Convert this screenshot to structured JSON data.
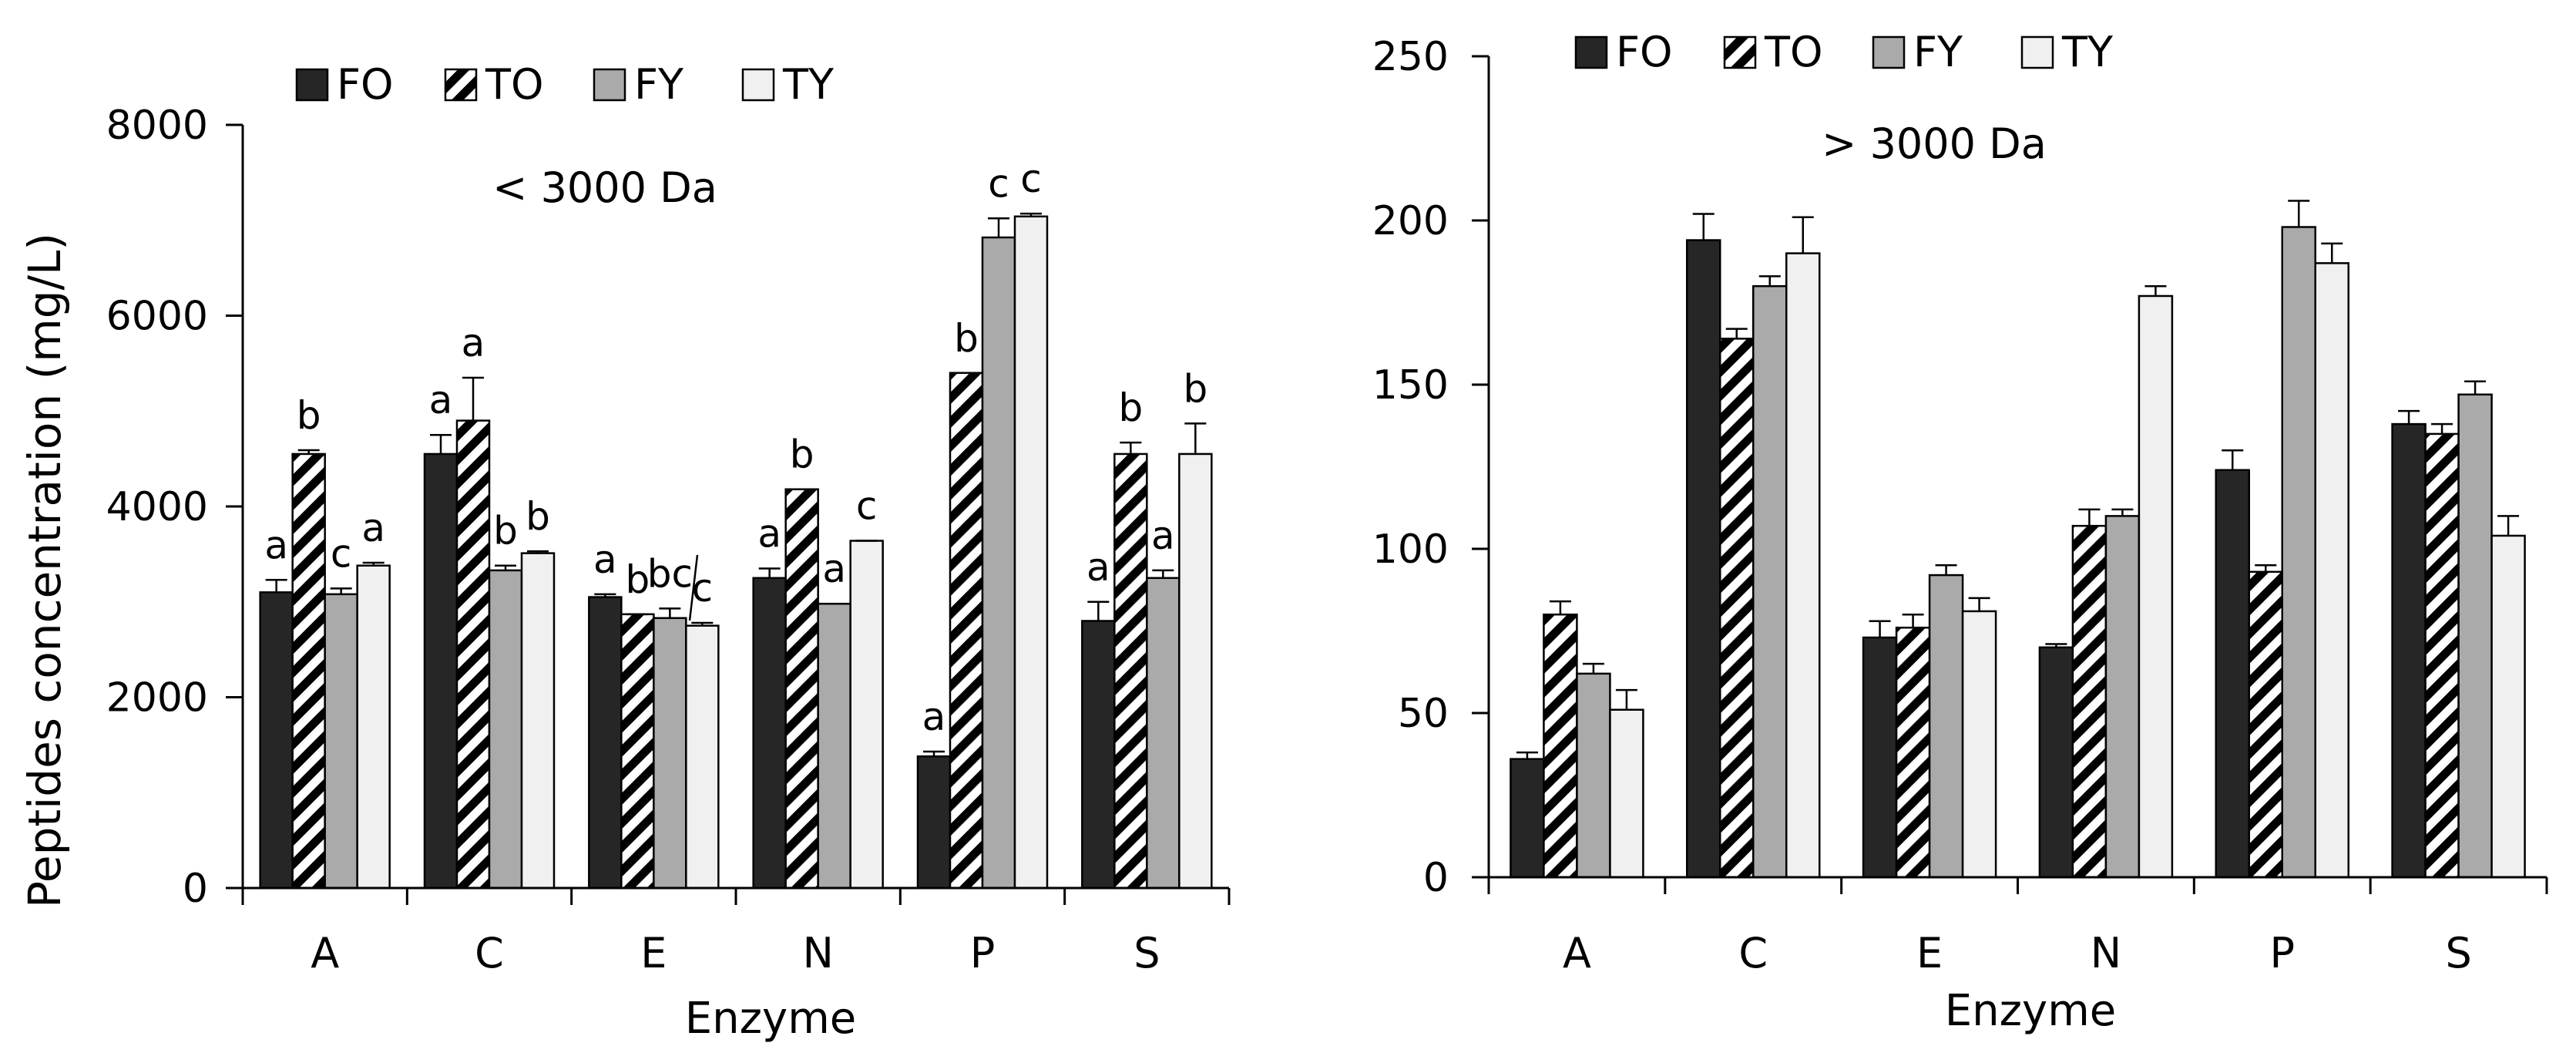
{
  "chart_data": [
    {
      "type": "bar",
      "panel_label": "< 3000 Da",
      "xlabel": "Enzyme",
      "ylabel": "Peptides concentration (mg/L)",
      "ylim": [
        0,
        8000
      ],
      "yticks": [
        0,
        2000,
        4000,
        6000,
        8000
      ],
      "grid": false,
      "legend_position": "top-left",
      "categories": [
        "A",
        "C",
        "E",
        "N",
        "P",
        "S"
      ],
      "series": [
        {
          "name": "FO",
          "values": [
            3100,
            4550,
            3050,
            3250,
            1380,
            2800
          ],
          "errors": [
            130,
            200,
            30,
            100,
            50,
            200
          ],
          "letters": [
            "a",
            "a",
            "a",
            "a",
            "a",
            "a"
          ]
        },
        {
          "name": "TO",
          "values": [
            4550,
            4900,
            2870,
            4180,
            5400,
            4550
          ],
          "errors": [
            40,
            450,
            0,
            0,
            0,
            120
          ],
          "letters": [
            "b",
            "a",
            "b",
            "b",
            "b",
            "b"
          ]
        },
        {
          "name": "FY",
          "values": [
            3080,
            3330,
            2830,
            2980,
            6820,
            3250
          ],
          "errors": [
            60,
            50,
            100,
            0,
            200,
            80
          ],
          "letters": [
            "c",
            "b",
            "bc",
            "a",
            "c",
            "a"
          ]
        },
        {
          "name": "TY",
          "values": [
            3380,
            3510,
            2750,
            3640,
            7040,
            4550
          ],
          "errors": [
            30,
            20,
            30,
            0,
            30,
            320
          ],
          "letters": [
            "a",
            "b",
            "c",
            "c",
            "c",
            "b"
          ]
        }
      ]
    },
    {
      "type": "bar",
      "panel_label": "> 3000 Da",
      "xlabel": "Enzyme",
      "ylabel": "",
      "ylim": [
        0,
        250
      ],
      "yticks": [
        0,
        50,
        100,
        150,
        200,
        250
      ],
      "grid": false,
      "legend_position": "top-left",
      "categories": [
        "A",
        "C",
        "E",
        "N",
        "P",
        "S"
      ],
      "series": [
        {
          "name": "FO",
          "values": [
            36,
            194,
            73,
            70,
            124,
            138
          ],
          "errors": [
            2,
            8,
            5,
            1,
            6,
            4
          ]
        },
        {
          "name": "TO",
          "values": [
            80,
            164,
            76,
            107,
            93,
            135
          ],
          "errors": [
            4,
            3,
            4,
            5,
            2,
            3
          ]
        },
        {
          "name": "FY",
          "values": [
            62,
            180,
            92,
            110,
            198,
            147
          ],
          "errors": [
            3,
            3,
            3,
            2,
            8,
            4
          ]
        },
        {
          "name": "TY",
          "values": [
            51,
            190,
            81,
            177,
            187,
            104
          ],
          "errors": [
            6,
            11,
            4,
            3,
            6,
            6
          ]
        }
      ]
    }
  ],
  "colors": {
    "FO": "#262626",
    "TO": "#ffffff",
    "FY": "#aaaaaa",
    "TY": "#f0f0f0",
    "outline": "#000000"
  }
}
